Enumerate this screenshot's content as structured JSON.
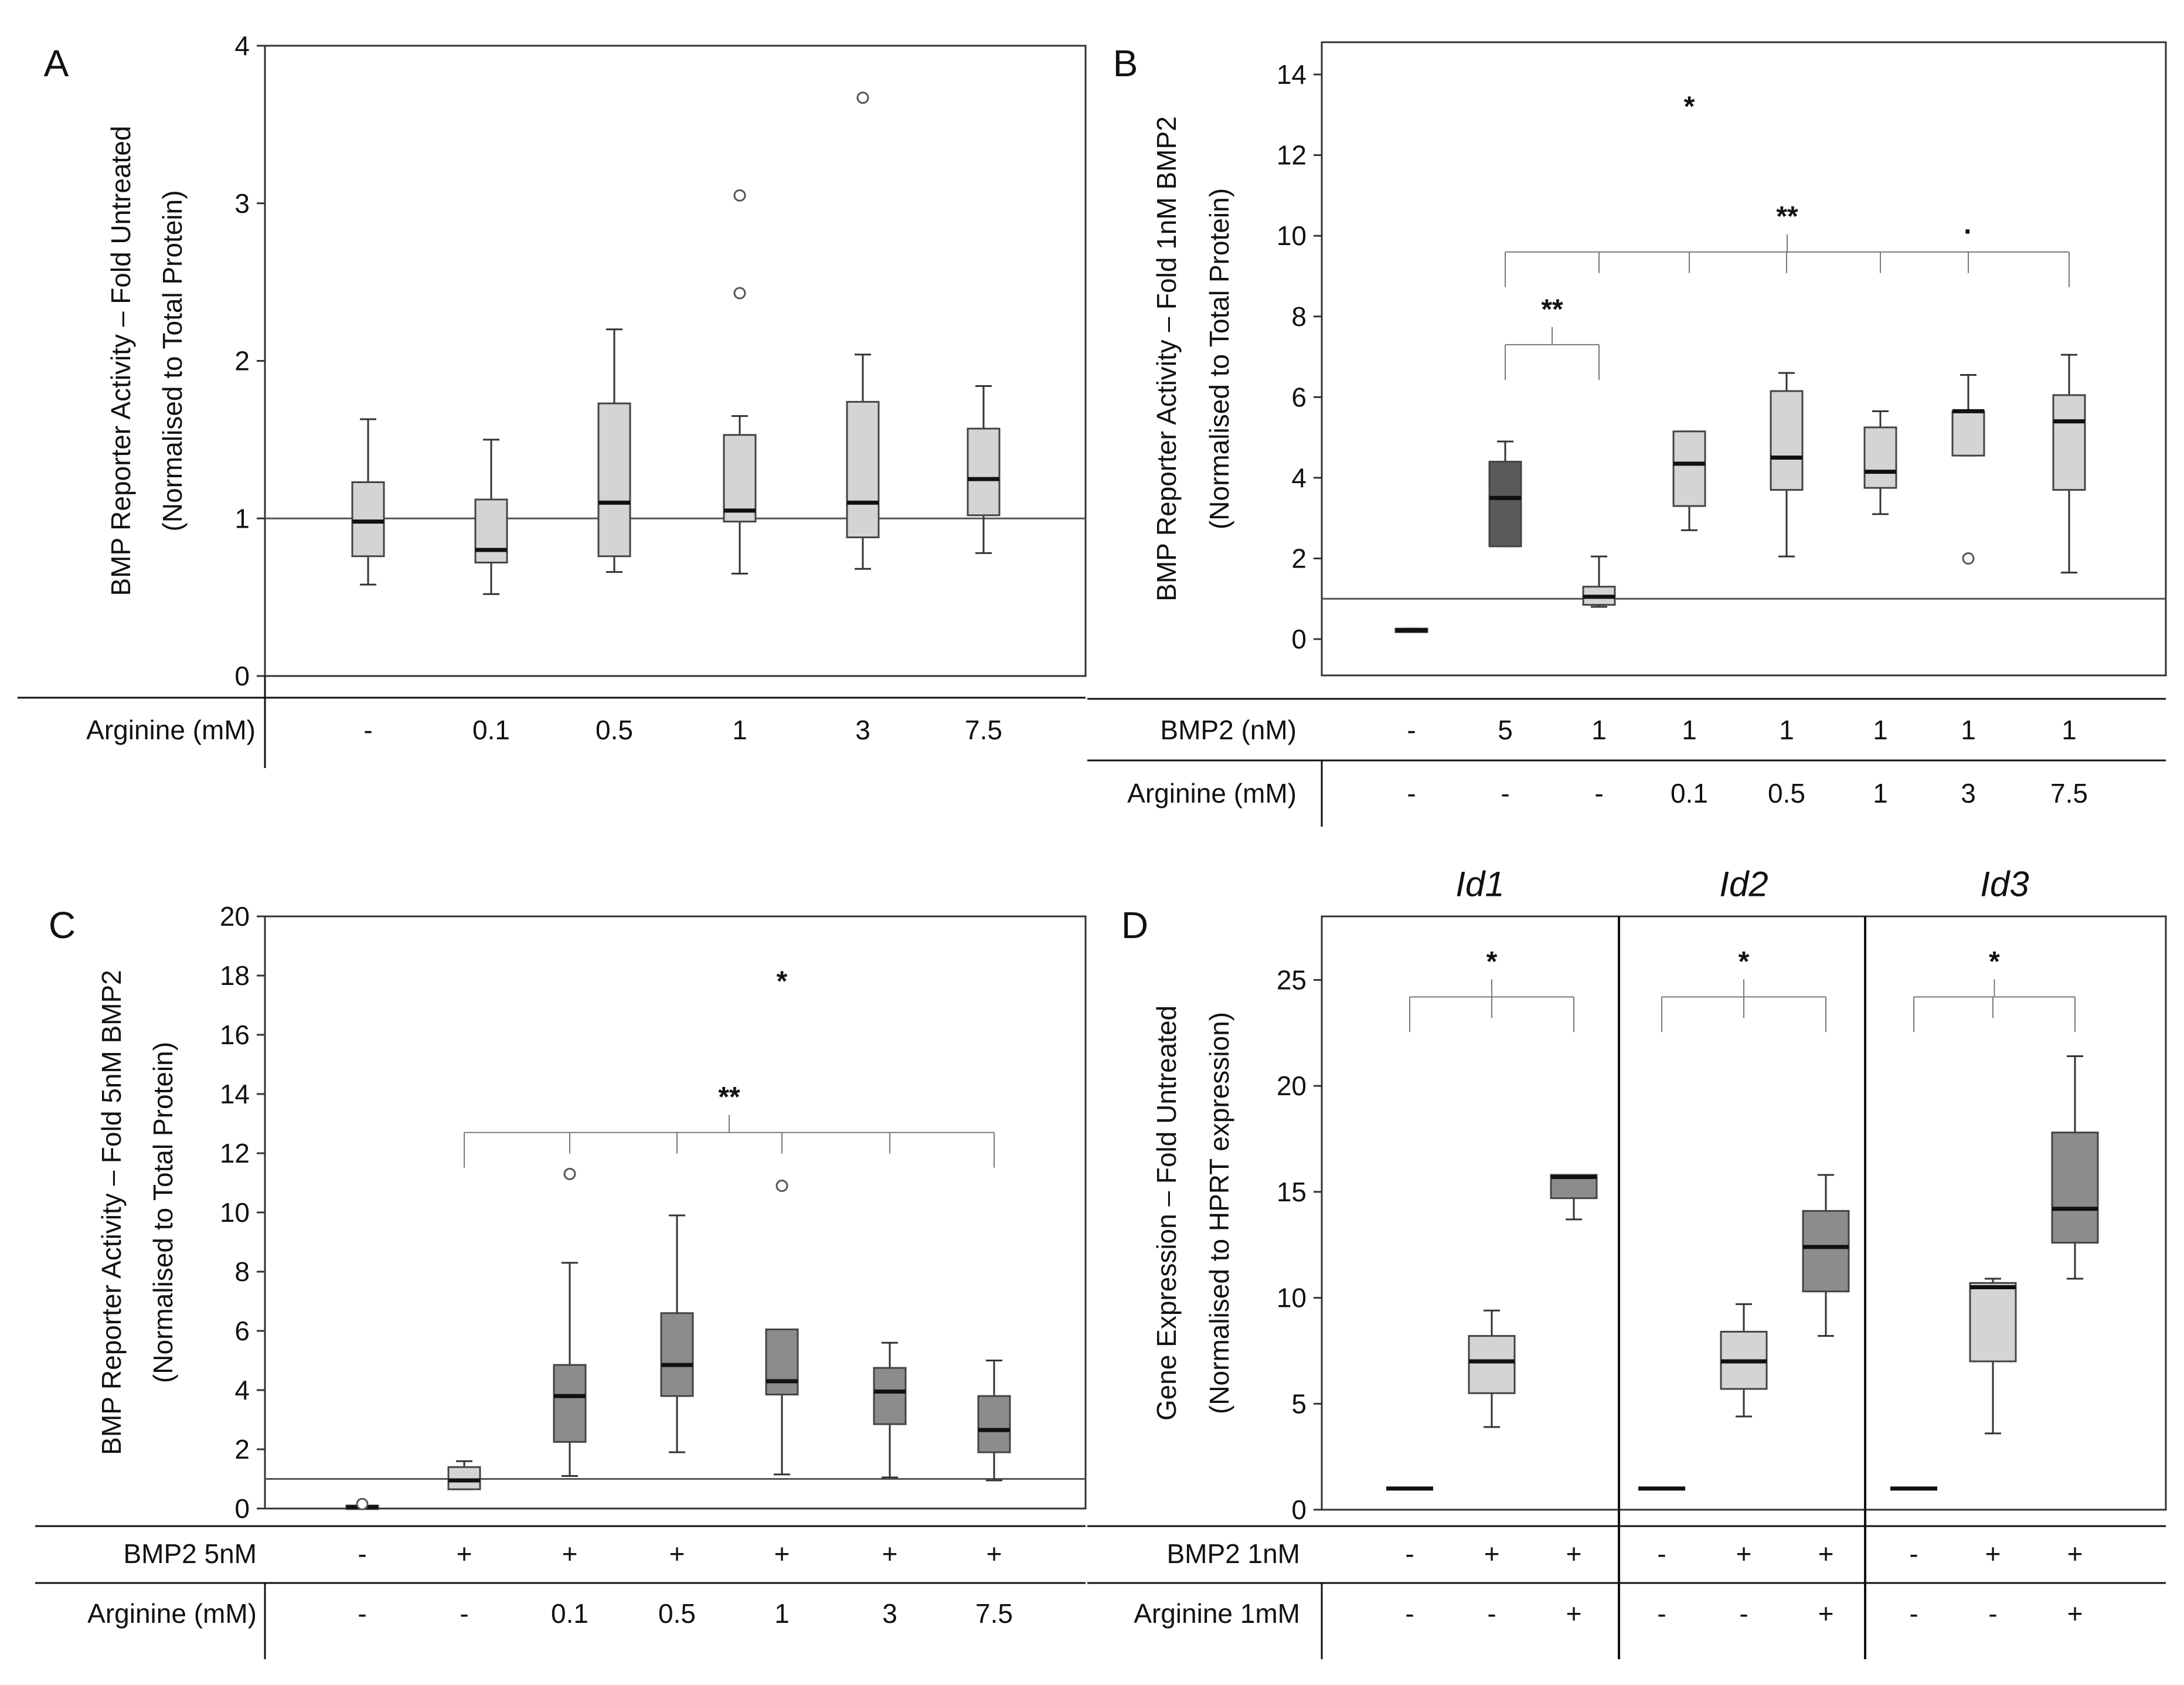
{
  "colors": {
    "light_box": "#d4d4d4",
    "dark_box": "#8c8c8c",
    "darker_box": "#5a5a5a",
    "axis": "#555555"
  },
  "chart_data": [
    {
      "panel": "A",
      "type": "box",
      "ylabel_line1": "BMP Reporter Activity – Fold Untreated",
      "ylabel_line2": "(Normalised to Total Protein)",
      "ylim": [
        0,
        4
      ],
      "yticks": [
        0,
        1,
        2,
        3,
        4
      ],
      "reference_line": 1,
      "row_labels": [
        "Arginine (mM)"
      ],
      "rows": [
        [
          "-",
          "0.1",
          "0.5",
          "1",
          "3",
          "7.5"
        ]
      ],
      "boxes": [
        {
          "min": 0.58,
          "q1": 0.76,
          "median": 0.98,
          "q3": 1.23,
          "max": 1.63,
          "shade": "light",
          "outliers": []
        },
        {
          "min": 0.52,
          "q1": 0.72,
          "median": 0.8,
          "q3": 1.12,
          "max": 1.5,
          "shade": "light",
          "outliers": []
        },
        {
          "min": 0.66,
          "q1": 0.76,
          "median": 1.1,
          "q3": 1.73,
          "max": 2.2,
          "shade": "light",
          "outliers": []
        },
        {
          "min": 0.65,
          "q1": 0.98,
          "median": 1.05,
          "q3": 1.53,
          "max": 1.65,
          "shade": "light",
          "outliers": [
            2.43,
            3.05
          ]
        },
        {
          "min": 0.68,
          "q1": 0.88,
          "median": 1.1,
          "q3": 1.74,
          "max": 2.04,
          "shade": "light",
          "outliers": [
            3.67
          ]
        },
        {
          "min": 0.78,
          "q1": 1.02,
          "median": 1.25,
          "q3": 1.57,
          "max": 1.84,
          "shade": "light",
          "outliers": []
        }
      ],
      "significance": []
    },
    {
      "panel": "B",
      "type": "box",
      "ylabel_line1": "BMP Reporter Activity – Fold 1nM BMP2",
      "ylabel_line2": "(Normalised to Total Protein)",
      "ylim": [
        -0.9,
        14.8
      ],
      "yticks": [
        0,
        2,
        4,
        6,
        8,
        10,
        12,
        14
      ],
      "reference_line": 1,
      "row_labels": [
        "BMP2 (nM)",
        "Arginine (mM)"
      ],
      "rows": [
        [
          "-",
          "5",
          "1",
          "1",
          "1",
          "1",
          "1",
          "1"
        ],
        [
          "-",
          "-",
          "-",
          "0.1",
          "0.5",
          "1",
          "3",
          "7.5"
        ]
      ],
      "boxes": [
        {
          "min": 0.18,
          "q1": 0.18,
          "median": 0.22,
          "q3": 0.26,
          "max": 0.26,
          "shade": "darker",
          "outliers": []
        },
        {
          "min": 2.3,
          "q1": 2.3,
          "median": 3.5,
          "q3": 4.4,
          "max": 4.9,
          "shade": "darker",
          "outliers": []
        },
        {
          "min": 0.8,
          "q1": 0.85,
          "median": 1.05,
          "q3": 1.3,
          "max": 2.05,
          "shade": "light",
          "outliers": []
        },
        {
          "min": 2.7,
          "q1": 3.3,
          "median": 4.35,
          "q3": 5.15,
          "max": 5.15,
          "shade": "light",
          "outliers": []
        },
        {
          "min": 2.05,
          "q1": 3.7,
          "median": 4.5,
          "q3": 6.15,
          "max": 6.6,
          "shade": "light",
          "outliers": []
        },
        {
          "min": 3.1,
          "q1": 3.75,
          "median": 4.15,
          "q3": 5.25,
          "max": 5.65,
          "shade": "light",
          "outliers": []
        },
        {
          "min": 4.55,
          "q1": 4.55,
          "median": 5.65,
          "q3": 5.65,
          "max": 6.55,
          "shade": "light",
          "outliers": [
            2.0
          ]
        },
        {
          "min": 1.65,
          "q1": 3.7,
          "median": 5.4,
          "q3": 6.05,
          "max": 7.05,
          "shade": "light",
          "outliers": []
        }
      ],
      "significance": [
        {
          "label": "**",
          "from": 1,
          "to": 2,
          "y": 7.3
        },
        {
          "label": "**",
          "from": 1,
          "to": 7,
          "y": 9.6
        }
      ],
      "annotations": [
        {
          "label": "*",
          "x": 3,
          "y": 13.2
        },
        {
          "label": "·",
          "x": 6,
          "y": 10.1
        }
      ]
    },
    {
      "panel": "C",
      "type": "box",
      "ylabel_line1": "BMP Reporter Activity – Fold 5nM BMP2",
      "ylabel_line2": "(Normalised to Total Protein)",
      "ylim": [
        0,
        20
      ],
      "yticks": [
        0,
        2,
        4,
        6,
        8,
        10,
        12,
        14,
        16,
        18,
        20
      ],
      "reference_line": 1,
      "row_labels": [
        "BMP2 5nM",
        "Arginine (mM)"
      ],
      "rows": [
        [
          "-",
          "+",
          "+",
          "+",
          "+",
          "+",
          "+"
        ],
        [
          "-",
          "-",
          "0.1",
          "0.5",
          "1",
          "3",
          "7.5"
        ]
      ],
      "boxes": [
        {
          "min": 0.0,
          "q1": 0.0,
          "median": 0.05,
          "q3": 0.1,
          "max": 0.1,
          "shade": "light",
          "outliers": [
            0.15
          ]
        },
        {
          "min": 0.65,
          "q1": 0.65,
          "median": 0.95,
          "q3": 1.4,
          "max": 1.6,
          "shade": "light",
          "outliers": []
        },
        {
          "min": 1.1,
          "q1": 2.25,
          "median": 3.8,
          "q3": 4.85,
          "max": 8.3,
          "shade": "dark",
          "outliers": [
            11.3
          ]
        },
        {
          "min": 1.9,
          "q1": 3.8,
          "median": 4.85,
          "q3": 6.6,
          "max": 9.9,
          "shade": "dark",
          "outliers": []
        },
        {
          "min": 1.15,
          "q1": 3.85,
          "median": 4.3,
          "q3": 6.05,
          "max": 6.05,
          "shade": "dark",
          "outliers": [
            10.9
          ]
        },
        {
          "min": 1.05,
          "q1": 2.85,
          "median": 3.95,
          "q3": 4.75,
          "max": 5.6,
          "shade": "dark",
          "outliers": []
        },
        {
          "min": 0.95,
          "q1": 1.9,
          "median": 2.65,
          "q3": 3.8,
          "max": 5.0,
          "shade": "dark",
          "outliers": []
        }
      ],
      "significance": [
        {
          "label": "**",
          "from": 1,
          "to": 6,
          "y": 12.7
        }
      ],
      "annotations": [
        {
          "label": "*",
          "x": 4,
          "y": 17.8
        }
      ]
    },
    {
      "panel": "D",
      "type": "box",
      "ylabel_line1": "Gene Expression – Fold Untreated",
      "ylabel_line2": "(Normalised to HPRT expression)",
      "ylim": [
        0,
        28
      ],
      "yticks": [
        0,
        5,
        10,
        15,
        20,
        25
      ],
      "row_labels": [
        "BMP2 1nM",
        "Arginine 1mM"
      ],
      "genes": [
        "Id1",
        "Id2",
        "Id3"
      ],
      "rows": [
        [
          "-",
          "+",
          "+",
          "-",
          "+",
          "+",
          "-",
          "+",
          "+"
        ],
        [
          "-",
          "-",
          "+",
          "-",
          "-",
          "+",
          "-",
          "-",
          "+"
        ]
      ],
      "boxes": [
        {
          "min": 1.0,
          "q1": 1.0,
          "median": 1.0,
          "q3": 1.0,
          "max": 1.0,
          "shade": "none",
          "outliers": []
        },
        {
          "min": 3.9,
          "q1": 5.5,
          "median": 7.0,
          "q3": 8.2,
          "max": 9.4,
          "shade": "light",
          "outliers": []
        },
        {
          "min": 13.7,
          "q1": 14.7,
          "median": 15.7,
          "q3": 15.8,
          "max": 15.8,
          "shade": "dark",
          "outliers": []
        },
        {
          "min": 1.0,
          "q1": 1.0,
          "median": 1.0,
          "q3": 1.0,
          "max": 1.0,
          "shade": "none",
          "outliers": []
        },
        {
          "min": 4.4,
          "q1": 5.7,
          "median": 7.0,
          "q3": 8.4,
          "max": 9.7,
          "shade": "light",
          "outliers": []
        },
        {
          "min": 8.2,
          "q1": 10.3,
          "median": 12.4,
          "q3": 14.1,
          "max": 15.8,
          "shade": "dark",
          "outliers": []
        },
        {
          "min": 1.0,
          "q1": 1.0,
          "median": 1.0,
          "q3": 1.0,
          "max": 1.0,
          "shade": "none",
          "outliers": []
        },
        {
          "min": 3.6,
          "q1": 7.0,
          "median": 10.5,
          "q3": 10.7,
          "max": 10.9,
          "shade": "light",
          "outliers": []
        },
        {
          "min": 10.9,
          "q1": 12.6,
          "median": 14.2,
          "q3": 17.8,
          "max": 21.4,
          "shade": "dark",
          "outliers": []
        }
      ],
      "significance": [
        {
          "label": "*",
          "from": 0,
          "to": 2,
          "y": 24.2
        },
        {
          "label": "*",
          "from": 3,
          "to": 5,
          "y": 24.2
        },
        {
          "label": "*",
          "from": 6,
          "to": 8,
          "y": 24.2
        }
      ]
    }
  ]
}
